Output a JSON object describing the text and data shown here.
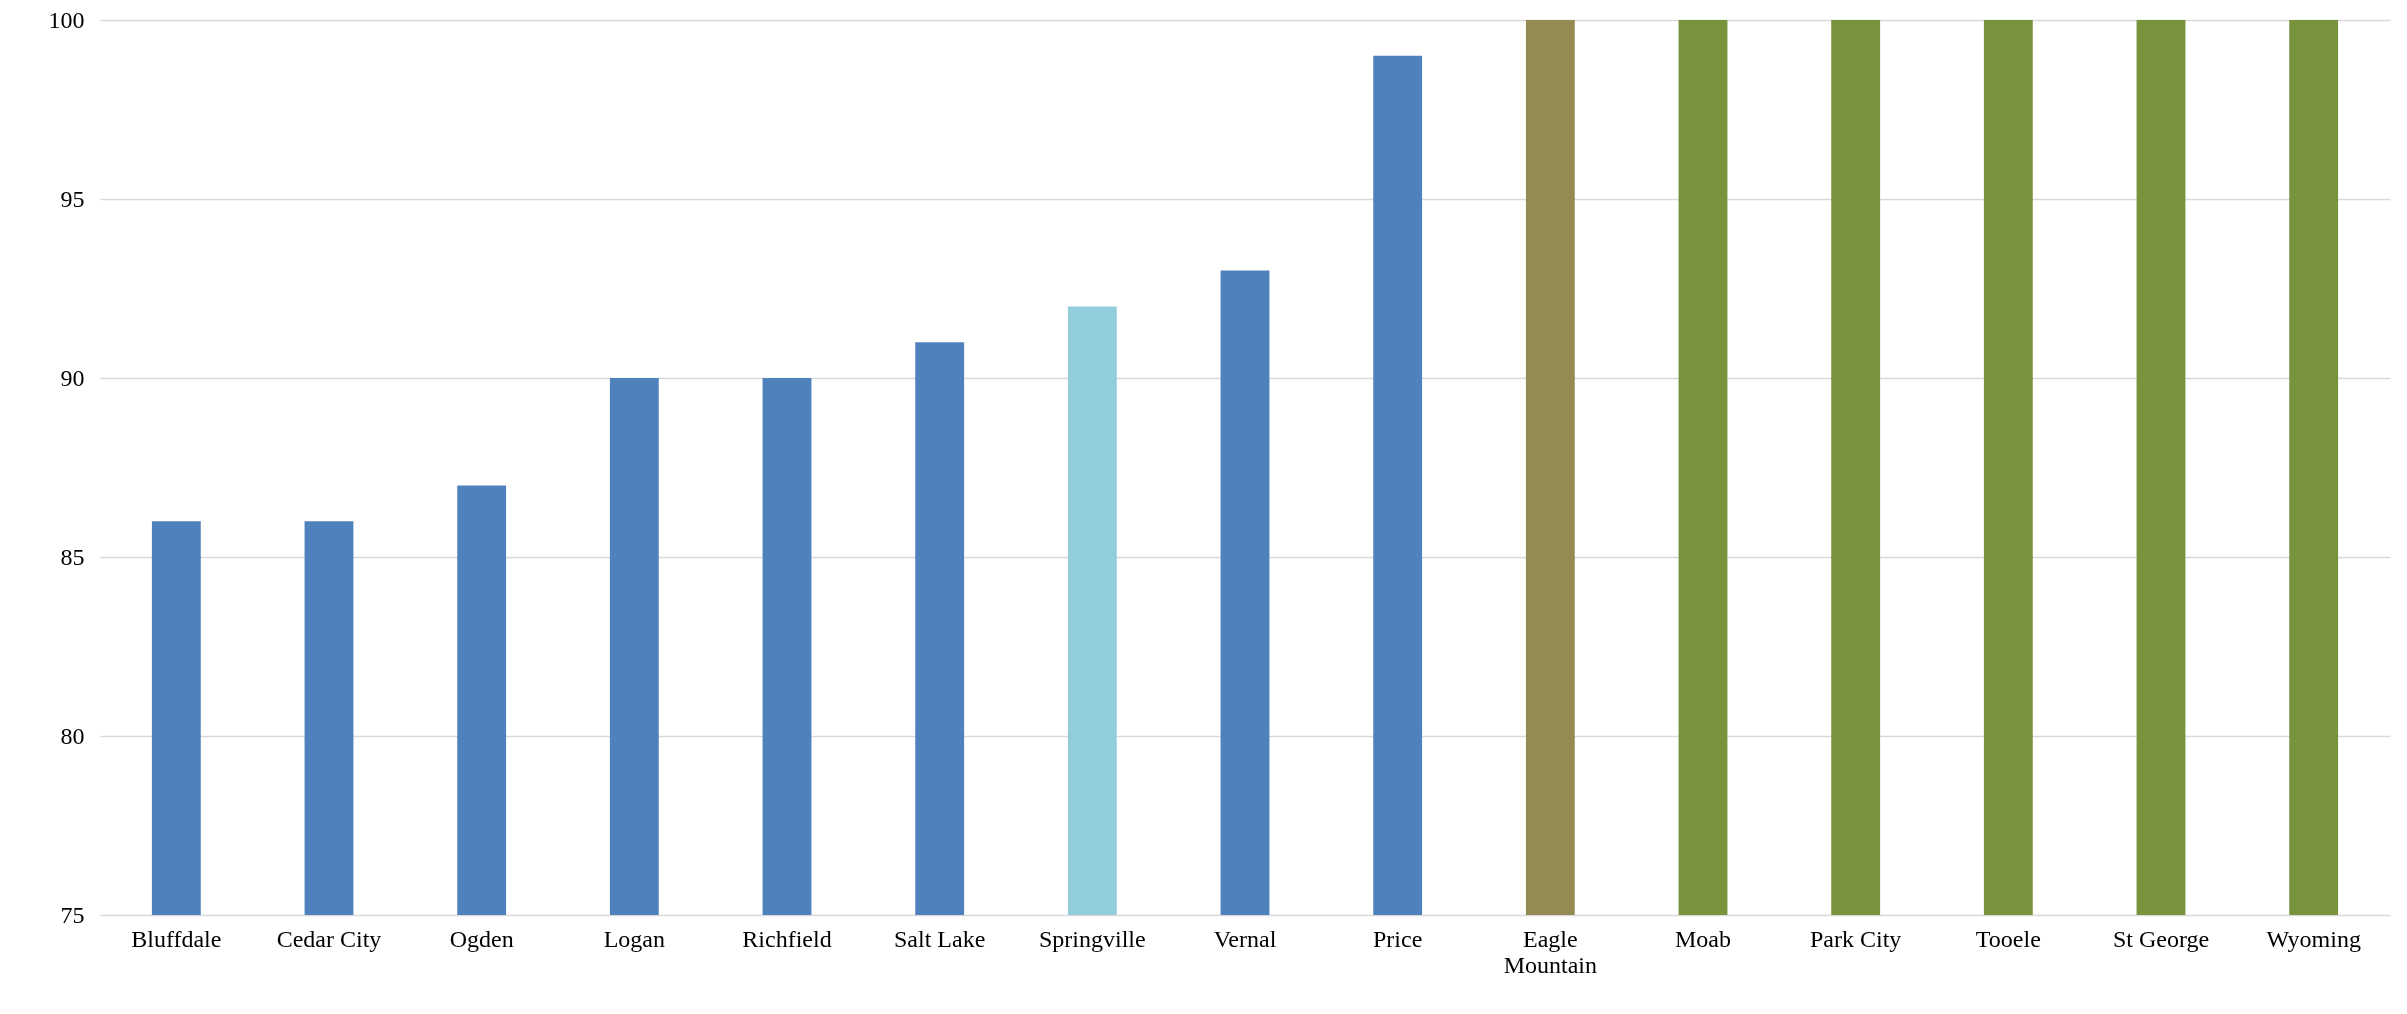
{
  "chart_data": {
    "type": "bar",
    "categories": [
      "Bluffdale",
      "Cedar City",
      "Ogden",
      "Logan",
      "Richfield",
      "Salt Lake",
      "Springville",
      "Vernal",
      "Price",
      "Eagle Mountain",
      "Moab",
      "Park City",
      "Tooele",
      "St George",
      "Wyoming"
    ],
    "values": [
      86,
      86,
      87,
      90,
      90,
      91,
      92,
      93,
      99,
      100,
      100,
      100,
      100,
      100,
      100
    ],
    "colors": [
      "#4f81bd",
      "#4f81bd",
      "#4f81bd",
      "#4f81bd",
      "#4f81bd",
      "#4f81bd",
      "#92cddc",
      "#4f81bd",
      "#4f81bd",
      "#948a54",
      "#77933c",
      "#77933c",
      "#77933c",
      "#77933c",
      "#77933c"
    ],
    "ylim": [
      75,
      100
    ],
    "yticks": [
      75,
      80,
      85,
      90,
      95,
      100
    ],
    "grid": "y"
  }
}
